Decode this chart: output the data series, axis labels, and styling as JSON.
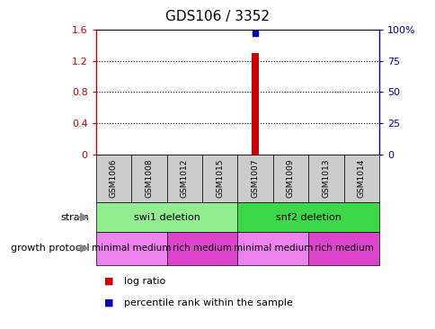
{
  "title": "GDS106 / 3352",
  "samples": [
    "GSM1006",
    "GSM1008",
    "GSM1012",
    "GSM1015",
    "GSM1007",
    "GSM1009",
    "GSM1013",
    "GSM1014"
  ],
  "log_ratio_sample": "GSM1007",
  "log_ratio_value": 1.3,
  "percentile_value": 97,
  "ylim_left": [
    0,
    1.6
  ],
  "ylim_right": [
    0,
    100
  ],
  "yticks_left": [
    0,
    0.4,
    0.8,
    1.2,
    1.6
  ],
  "yticks_right": [
    0,
    25,
    50,
    75,
    100
  ],
  "ytick_labels_left": [
    "0",
    "0.4",
    "0.8",
    "1.2",
    "1.6"
  ],
  "ytick_labels_right": [
    "0",
    "25",
    "50",
    "75",
    "100%"
  ],
  "strain_groups": [
    {
      "label": "swi1 deletion",
      "start": 0,
      "end": 4,
      "color": "#90EE90"
    },
    {
      "label": "snf2 deletion",
      "start": 4,
      "end": 8,
      "color": "#3DD84A"
    }
  ],
  "growth_groups": [
    {
      "label": "minimal medium",
      "start": 0,
      "end": 2,
      "color": "#EE82EE"
    },
    {
      "label": "rich medium",
      "start": 2,
      "end": 4,
      "color": "#DD44CC"
    },
    {
      "label": "minimal medium",
      "start": 4,
      "end": 6,
      "color": "#EE82EE"
    },
    {
      "label": "rich medium",
      "start": 6,
      "end": 8,
      "color": "#DD44CC"
    }
  ],
  "bar_color": "#CC0000",
  "dot_color": "#0000BB",
  "axis_left_color": "#CC0000",
  "axis_right_color": "#0000BB",
  "sample_box_color": "#CCCCCC",
  "arrow_color": "#888888",
  "legend_items": [
    {
      "label": "log ratio",
      "color": "#CC0000"
    },
    {
      "label": "percentile rank within the sample",
      "color": "#0000BB"
    }
  ],
  "title_fontsize": 11,
  "tick_fontsize": 8,
  "sample_fontsize": 6.5,
  "label_fontsize": 8,
  "group_fontsize": 8,
  "growth_fontsize": 7.5
}
